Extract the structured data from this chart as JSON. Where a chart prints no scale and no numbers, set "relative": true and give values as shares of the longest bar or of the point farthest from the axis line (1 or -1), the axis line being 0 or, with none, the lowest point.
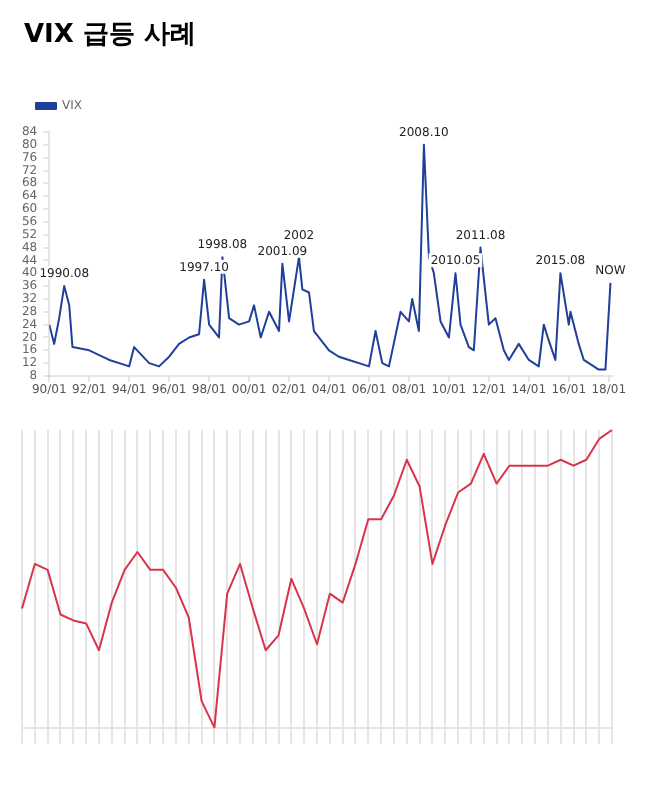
{
  "chart_data": [
    {
      "type": "line",
      "title": "VIX 급등 사례",
      "legend": "top left",
      "grid": false,
      "marker": "none",
      "x": [
        "1990-01",
        "1990-04",
        "1990-07",
        "1990-10",
        "1991-01",
        "1991-03",
        "1992-01",
        "1993-01",
        "1993-07",
        "1994-01",
        "1994-04",
        "1995-01",
        "1995-07",
        "1996-01",
        "1996-07",
        "1997-01",
        "1997-07",
        "1997-10",
        "1998-01",
        "1998-07",
        "1998-09",
        "1999-01",
        "1999-07",
        "2000-01",
        "2000-04",
        "2000-08",
        "2001-01",
        "2001-07",
        "2001-09",
        "2002-01",
        "2002-07",
        "2002-09",
        "2003-01",
        "2003-04",
        "2004-01",
        "2004-07",
        "2005-01",
        "2005-07",
        "2006-01",
        "2006-05",
        "2006-09",
        "2007-01",
        "2007-08",
        "2008-01",
        "2008-03",
        "2008-07",
        "2008-10",
        "2009-01",
        "2009-04",
        "2009-08",
        "2010-01",
        "2010-05",
        "2010-08",
        "2011-01",
        "2011-04",
        "2011-08",
        "2012-01",
        "2012-05",
        "2012-10",
        "2013-01",
        "2013-07",
        "2014-01",
        "2014-07",
        "2014-10",
        "2015-01",
        "2015-05",
        "2015-08",
        "2016-01",
        "2016-02",
        "2016-07",
        "2016-10",
        "2017-01",
        "2017-07",
        "2017-11",
        "2018-02"
      ],
      "series": [
        {
          "name": "VIX",
          "color": "#1f3f9a",
          "values": [
            24,
            18,
            26,
            36,
            30,
            17,
            16,
            13,
            12,
            11,
            17,
            12,
            11,
            14,
            18,
            20,
            21,
            38,
            24,
            20,
            45,
            26,
            24,
            25,
            30,
            20,
            28,
            22,
            43,
            25,
            45,
            35,
            34,
            22,
            16,
            14,
            13,
            12,
            11,
            22,
            12,
            11,
            28,
            25,
            32,
            22,
            80,
            45,
            40,
            25,
            20,
            40,
            24,
            17,
            16,
            48,
            24,
            26,
            16,
            13,
            18,
            13,
            11,
            24,
            19,
            13,
            40,
            24,
            28,
            18,
            13,
            12,
            10,
            10,
            37
          ]
        }
      ],
      "xlim": [
        "1990-01",
        "2018-03"
      ],
      "xticks": [
        {
          "value": "1990-01-01",
          "label": "90/01"
        },
        {
          "value": "1992-01-01",
          "label": "92/01"
        },
        {
          "value": "1994-01-01",
          "label": "94/01"
        },
        {
          "value": "1996-01-01",
          "label": "96/01"
        },
        {
          "value": "1998-01-01",
          "label": "98/01"
        },
        {
          "value": "2000-01-01",
          "label": "00/01"
        },
        {
          "value": "2002-01-01",
          "label": "02/01"
        },
        {
          "value": "2004-01-01",
          "label": "04/01"
        },
        {
          "value": "2006-01-01",
          "label": "06/01"
        },
        {
          "value": "2008-01-01",
          "label": "08/01"
        },
        {
          "value": "2010-01-01",
          "label": "10/01"
        },
        {
          "value": "2012-01-01",
          "label": "12/01"
        },
        {
          "value": "2014-01-01",
          "label": "14/01"
        },
        {
          "value": "2016-01-01",
          "label": "16/01"
        },
        {
          "value": "2018-01-01",
          "label": "18/01"
        }
      ],
      "ylim": [
        8,
        84
      ],
      "yticks": [
        8,
        12,
        16,
        20,
        24,
        28,
        32,
        36,
        40,
        44,
        48,
        52,
        56,
        60,
        64,
        68,
        72,
        76,
        80,
        84
      ],
      "annotations": [
        {
          "text": "1990.08",
          "x": "1990-10",
          "y": 36
        },
        {
          "text": "1997.10",
          "x": "1997-10",
          "y": 38
        },
        {
          "text": "1998.08",
          "x": "1998-09",
          "y": 45
        },
        {
          "text": "2001.09",
          "x": "2001-09",
          "y": 43
        },
        {
          "text": "2002",
          "x": "2002-07",
          "y": 45
        },
        {
          "text": "2008.10",
          "x": "2008-10",
          "y": 80
        },
        {
          "text": "2010.05",
          "x": "2010-05",
          "y": 40
        },
        {
          "text": "2011.08",
          "x": "2011-08",
          "y": 48
        },
        {
          "text": "2015.08",
          "x": "2015-08",
          "y": 40
        },
        {
          "text": "NOW",
          "x": "2018-02",
          "y": 37
        }
      ]
    },
    {
      "type": "line",
      "relative": true,
      "grid": "x",
      "legend": false,
      "marker": "none",
      "categories": [
        null,
        null,
        null,
        null,
        null,
        null,
        null,
        null,
        null,
        null,
        null,
        null,
        null,
        null,
        null,
        null,
        null,
        null,
        null,
        null,
        null,
        null,
        null,
        null,
        null,
        null,
        null,
        null,
        null,
        null,
        null,
        null,
        null,
        null,
        null,
        null,
        null,
        null,
        null,
        null,
        null,
        null,
        null,
        null,
        null,
        null,
        null
      ],
      "series": [
        {
          "color": "#d8354a",
          "values": [
            0.4,
            0.55,
            0.53,
            0.38,
            0.36,
            0.35,
            0.26,
            0.42,
            0.53,
            0.59,
            0.53,
            0.53,
            0.47,
            0.37,
            0.09,
            0,
            0.45,
            0.55,
            0.4,
            0.26,
            0.31,
            0.5,
            0.4,
            0.28,
            0.45,
            0.42,
            0.55,
            0.7,
            0.7,
            0.78,
            0.9,
            0.81,
            0.55,
            0.68,
            0.79,
            0.82,
            0.92,
            0.82,
            0.88,
            0.88,
            0.88,
            0.88,
            0.9,
            0.88,
            0.9,
            0.97,
            1
          ]
        }
      ]
    }
  ]
}
